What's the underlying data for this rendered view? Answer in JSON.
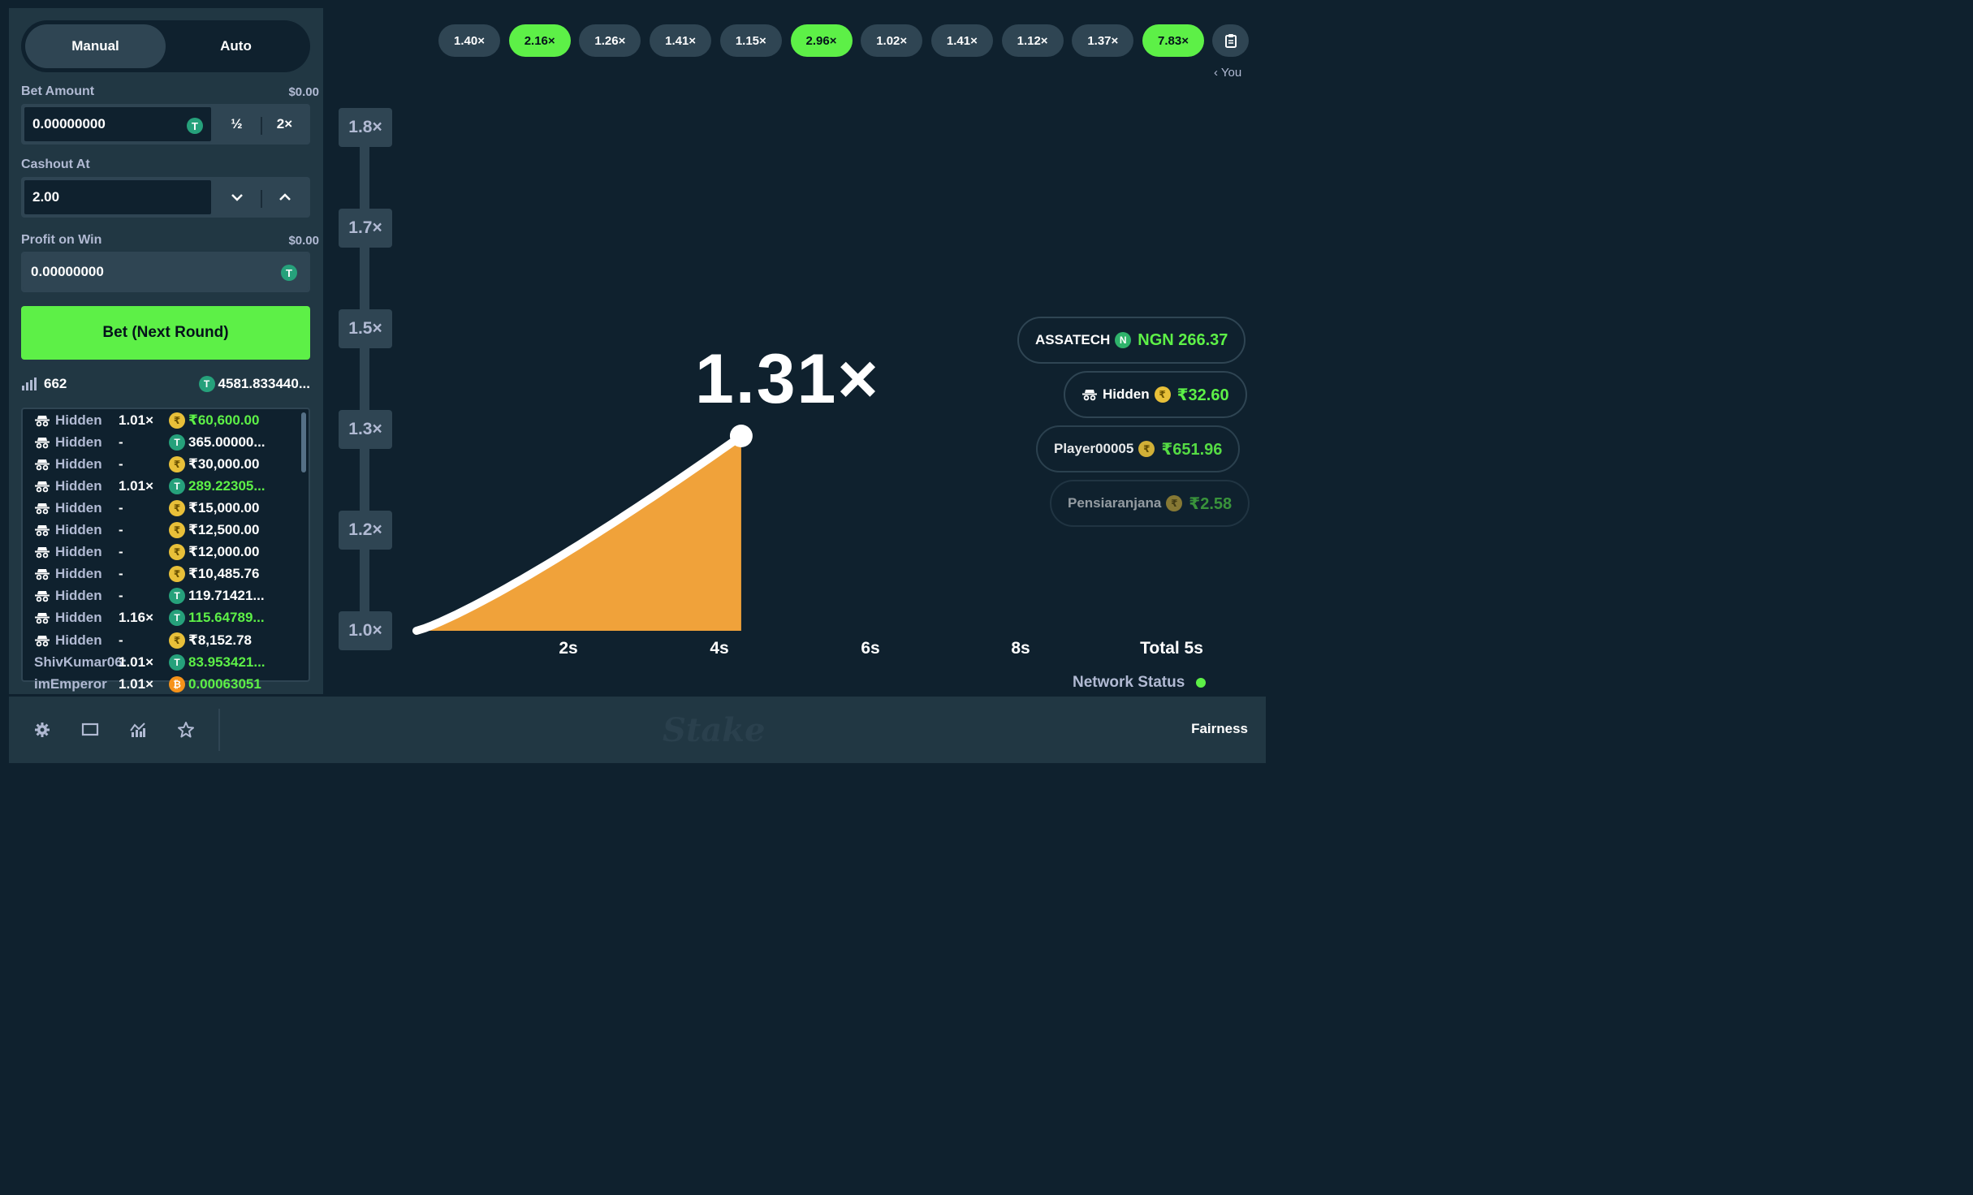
{
  "sidebar": {
    "tabs": [
      {
        "label": "Manual",
        "active": true
      },
      {
        "label": "Auto",
        "active": false
      }
    ],
    "bet_amount": {
      "label": "Bet Amount",
      "usd": "$0.00",
      "value": "0.00000000",
      "half": "½",
      "double": "2×"
    },
    "cashout": {
      "label": "Cashout At",
      "value": "2.00"
    },
    "profit": {
      "label": "Profit on Win",
      "usd": "$0.00",
      "value": "0.00000000"
    },
    "bet_button": "Bet (Next Round)",
    "players_count": "662",
    "total_bet": "4581.833440...",
    "bets": [
      {
        "player": "Hidden",
        "hidden": true,
        "mult": "1.01×",
        "coin": "₹",
        "amount": "₹60,600.00",
        "win": true
      },
      {
        "player": "Hidden",
        "hidden": true,
        "mult": "-",
        "coin": "T",
        "amount": "365.00000...",
        "win": false
      },
      {
        "player": "Hidden",
        "hidden": true,
        "mult": "-",
        "coin": "₹",
        "amount": "₹30,000.00",
        "win": false
      },
      {
        "player": "Hidden",
        "hidden": true,
        "mult": "1.01×",
        "coin": "T",
        "amount": "289.22305...",
        "win": true
      },
      {
        "player": "Hidden",
        "hidden": true,
        "mult": "-",
        "coin": "₹",
        "amount": "₹15,000.00",
        "win": false
      },
      {
        "player": "Hidden",
        "hidden": true,
        "mult": "-",
        "coin": "₹",
        "amount": "₹12,500.00",
        "win": false
      },
      {
        "player": "Hidden",
        "hidden": true,
        "mult": "-",
        "coin": "₹",
        "amount": "₹12,000.00",
        "win": false
      },
      {
        "player": "Hidden",
        "hidden": true,
        "mult": "-",
        "coin": "₹",
        "amount": "₹10,485.76",
        "win": false
      },
      {
        "player": "Hidden",
        "hidden": true,
        "mult": "-",
        "coin": "T",
        "amount": "119.71421...",
        "win": false
      },
      {
        "player": "Hidden",
        "hidden": true,
        "mult": "1.16×",
        "coin": "T",
        "amount": "115.64789...",
        "win": true
      },
      {
        "player": "Hidden",
        "hidden": true,
        "mult": "-",
        "coin": "₹",
        "amount": "₹8,152.78",
        "win": false
      },
      {
        "player": "ShivKumar06:",
        "hidden": false,
        "mult": "1.01×",
        "coin": "T",
        "amount": "83.953421...",
        "win": true
      },
      {
        "player": "imEmperor",
        "hidden": false,
        "mult": "1.01×",
        "coin": "₿",
        "amount": "0.00063051",
        "win": true
      }
    ]
  },
  "history": [
    {
      "value": "1.40×",
      "green": false
    },
    {
      "value": "2.16×",
      "green": true
    },
    {
      "value": "1.26×",
      "green": false
    },
    {
      "value": "1.41×",
      "green": false
    },
    {
      "value": "1.15×",
      "green": false
    },
    {
      "value": "2.96×",
      "green": true
    },
    {
      "value": "1.02×",
      "green": false
    },
    {
      "value": "1.41×",
      "green": false
    },
    {
      "value": "1.12×",
      "green": false
    },
    {
      "value": "1.37×",
      "green": false
    },
    {
      "value": "7.83×",
      "green": true
    }
  ],
  "you_label": "You",
  "graph": {
    "y_ticks": [
      "1.8×",
      "1.7×",
      "1.5×",
      "1.3×",
      "1.2×",
      "1.0×"
    ],
    "x_ticks": [
      "2s",
      "4s",
      "6s",
      "8s",
      "Total 5s"
    ],
    "current_multiplier": "1.31×",
    "current_time_s": 4.3
  },
  "winners": [
    {
      "name": "ASSATECH",
      "coin": "N",
      "amount": "NGN 266.37",
      "hidden": false
    },
    {
      "name": "Hidden",
      "coin": "₹",
      "amount": "₹32.60",
      "hidden": true
    },
    {
      "name": "Player00005",
      "coin": "₹",
      "amount": "₹651.96",
      "hidden": false
    },
    {
      "name": "Pensiaranjana",
      "coin": "₹",
      "amount": "₹2.58",
      "hidden": false
    }
  ],
  "network_status": "Network Status",
  "footer": {
    "logo": "Stake",
    "fairness": "Fairness"
  },
  "colors": {
    "green": "#5df047",
    "orange": "#f0a23a",
    "panel": "#213743",
    "bg": "#0f212e"
  }
}
